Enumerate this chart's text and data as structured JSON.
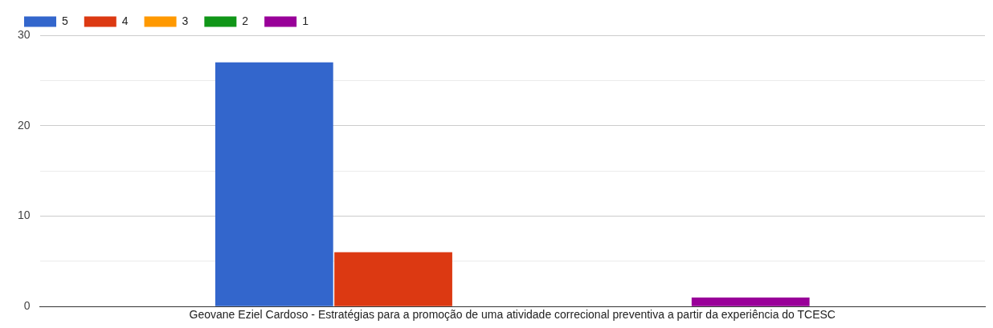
{
  "chart_data": {
    "type": "bar",
    "categories": [
      "Geovane Eziel Cardoso - Estratégias para a promoção de uma atividade correcional preventiva a partir da experiência do TCESC"
    ],
    "series": [
      {
        "name": "5",
        "color": "#3366cc",
        "values": [
          27
        ]
      },
      {
        "name": "4",
        "color": "#dc3912",
        "values": [
          6
        ]
      },
      {
        "name": "3",
        "color": "#ff9900",
        "values": [
          0
        ]
      },
      {
        "name": "2",
        "color": "#109618",
        "values": [
          0
        ]
      },
      {
        "name": "1",
        "color": "#990099",
        "values": [
          1
        ]
      }
    ],
    "ylim": [
      0,
      30
    ],
    "yticks": [
      0,
      {
        "value": 5,
        "label": null
      },
      10,
      {
        "value": 15,
        "label": null
      },
      20,
      {
        "value": 25,
        "label": null
      },
      30
    ],
    "grid": "y",
    "legend": "top left"
  }
}
